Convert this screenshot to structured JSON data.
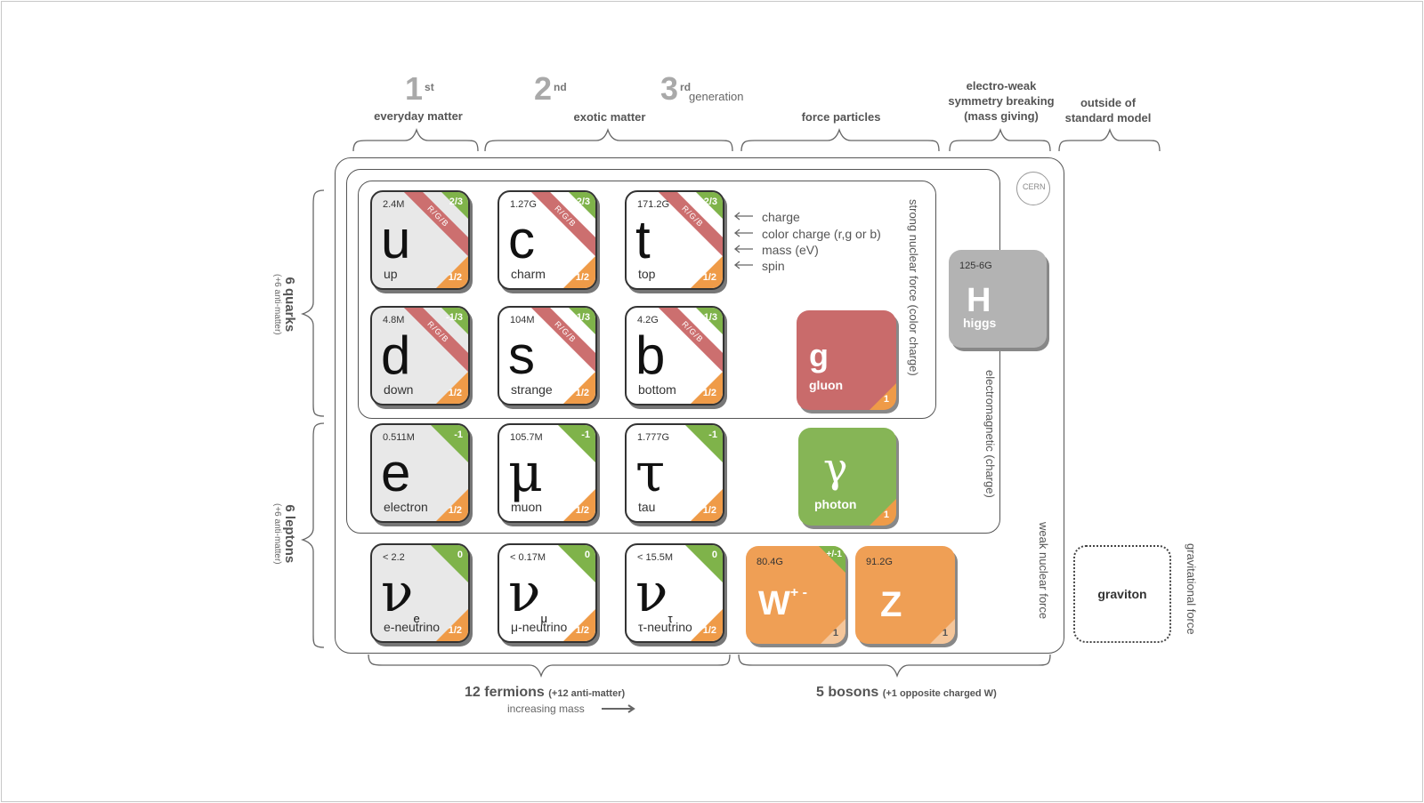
{
  "generations": {
    "first": {
      "num": "1",
      "sup": "st",
      "label": "everyday matter"
    },
    "second": {
      "num": "2",
      "sup": "nd",
      "label": "exotic matter"
    },
    "third": {
      "num": "3",
      "sup": "rd",
      "word": "generation"
    }
  },
  "headers": {
    "force": "force particles",
    "ew_1": "electro-weak",
    "ew_2": "symmetry breaking",
    "ew_3": "(mass giving)",
    "outside_1": "outside of",
    "outside_2": "standard model"
  },
  "quarks": [
    {
      "sym": "u",
      "name": "up",
      "mass": "2.4M",
      "charge": "2/3",
      "color": "R/G/B",
      "spin": "1/2",
      "bg": "gray"
    },
    {
      "sym": "c",
      "name": "charm",
      "mass": "1.27G",
      "charge": "2/3",
      "color": "R/G/B",
      "spin": "1/2",
      "bg": "white"
    },
    {
      "sym": "t",
      "name": "top",
      "mass": "171.2G",
      "charge": "2/3",
      "color": "R/G/B",
      "spin": "1/2",
      "bg": "white"
    },
    {
      "sym": "d",
      "name": "down",
      "mass": "4.8M",
      "charge": "-1/3",
      "color": "R/G/B",
      "spin": "1/2",
      "bg": "gray"
    },
    {
      "sym": "s",
      "name": "strange",
      "mass": "104M",
      "charge": "-1/3",
      "color": "R/G/B",
      "spin": "1/2",
      "bg": "white"
    },
    {
      "sym": "b",
      "name": "bottom",
      "mass": "4.2G",
      "charge": "-1/3",
      "color": "R/G/B",
      "spin": "1/2",
      "bg": "white"
    }
  ],
  "leptons": [
    {
      "sym": "e",
      "name": "electron",
      "mass": "0.511M",
      "charge": "-1",
      "spin": "1/2",
      "bg": "gray"
    },
    {
      "sym": "μ",
      "name": "muon",
      "mass": "105.7M",
      "charge": "-1",
      "spin": "1/2",
      "bg": "white"
    },
    {
      "sym": "τ",
      "name": "tau",
      "mass": "1.777G",
      "charge": "-1",
      "spin": "1/2",
      "bg": "white"
    },
    {
      "sym": "ν",
      "sub": "e",
      "name": "e-neutrino",
      "mass": "< 2.2",
      "charge": "0",
      "spin": "1/2",
      "bg": "gray"
    },
    {
      "sym": "ν",
      "sub": "μ",
      "name": "μ-neutrino",
      "mass": "< 0.17M",
      "charge": "0",
      "spin": "1/2",
      "bg": "white"
    },
    {
      "sym": "ν",
      "sub": "τ",
      "name": "τ-neutrino",
      "mass": "< 15.5M",
      "charge": "0",
      "spin": "1/2",
      "bg": "white"
    }
  ],
  "legend": {
    "charge": "charge",
    "color": "color charge (r,g or b)",
    "mass": "mass (eV)",
    "spin": "spin"
  },
  "bosons": {
    "gluon": {
      "sym": "g",
      "name": "gluon",
      "spin": "1",
      "color": "#c96b6b"
    },
    "photon": {
      "sym": "γ",
      "name": "photon",
      "spin": "1",
      "color": "#86b556"
    },
    "w": {
      "sym": "W",
      "sup": "+ -",
      "mass": "80.4G",
      "charge": "+/-1",
      "spin": "1",
      "color": "#ef9f55"
    },
    "z": {
      "sym": "Z",
      "mass": "91.2G",
      "spin": "1",
      "color": "#ef9f55"
    },
    "higgs": {
      "sym": "H",
      "name": "higgs",
      "mass": "125-6G",
      "color": "#b3b3b3"
    },
    "graviton": {
      "name": "graviton"
    }
  },
  "forces": {
    "strong": "strong nuclear force (color charge)",
    "em": "electromagnetic (charge)",
    "weak": "weak nuclear force",
    "grav": "gravitational force"
  },
  "side": {
    "quarks": "6 quarks",
    "quarks_sub": "(+6 anti-matter)",
    "leptons": "6 leptons",
    "leptons_sub": "(+6 anti-matter)"
  },
  "bottom": {
    "fermions": "12 fermions",
    "fermions_sub": "(+12 anti-matter)",
    "increasing": "increasing mass",
    "bosons": "5 bosons",
    "bosons_sub": "(+1 opposite charged W)"
  },
  "cern": "CERN",
  "colors": {
    "green": "#7fb34a",
    "red": "#cc6f6f",
    "orange": "#ef9b48",
    "gray": "#b3b3b3"
  }
}
